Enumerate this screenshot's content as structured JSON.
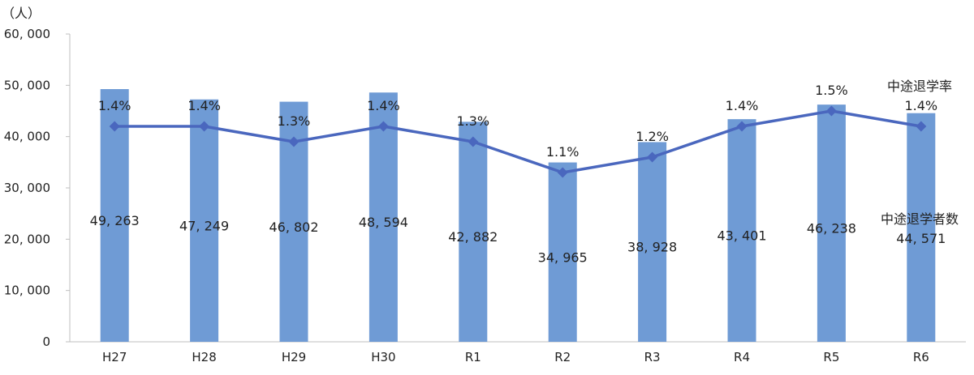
{
  "chart_data": {
    "type": "bar",
    "unit_label": "（人）",
    "categories": [
      "H27",
      "H28",
      "H29",
      "H30",
      "R1",
      "R2",
      "R3",
      "R4",
      "R5",
      "R6"
    ],
    "y_ticks": [
      "60, 000",
      "50, 000",
      "40, 000",
      "30, 000",
      "20, 000",
      "10, 000",
      "0"
    ],
    "ylim": [
      0,
      60000
    ],
    "grid": false,
    "series": [
      {
        "name": "中途退学者数",
        "type": "bar",
        "values": [
          49263,
          47249,
          46802,
          48594,
          42882,
          34965,
          38928,
          43401,
          46238,
          44571
        ],
        "labels": [
          "49, 263",
          "47, 249",
          "46, 802",
          "48, 594",
          "42, 882",
          "34, 965",
          "38, 928",
          "43, 401",
          "46, 238",
          "44, 571"
        ]
      },
      {
        "name": "中途退学率",
        "type": "line",
        "values": [
          1.4,
          1.4,
          1.3,
          1.4,
          1.3,
          1.1,
          1.2,
          1.4,
          1.5,
          1.4
        ],
        "labels": [
          "1.4%",
          "1.4%",
          "1.3%",
          "1.4%",
          "1.3%",
          "1.1%",
          "1.2%",
          "1.4%",
          "1.5%",
          "1.4%"
        ]
      }
    ],
    "colors": {
      "bar": "#6F9BD5",
      "line": "#4A67BE",
      "axis": "#BFBFBF"
    }
  }
}
